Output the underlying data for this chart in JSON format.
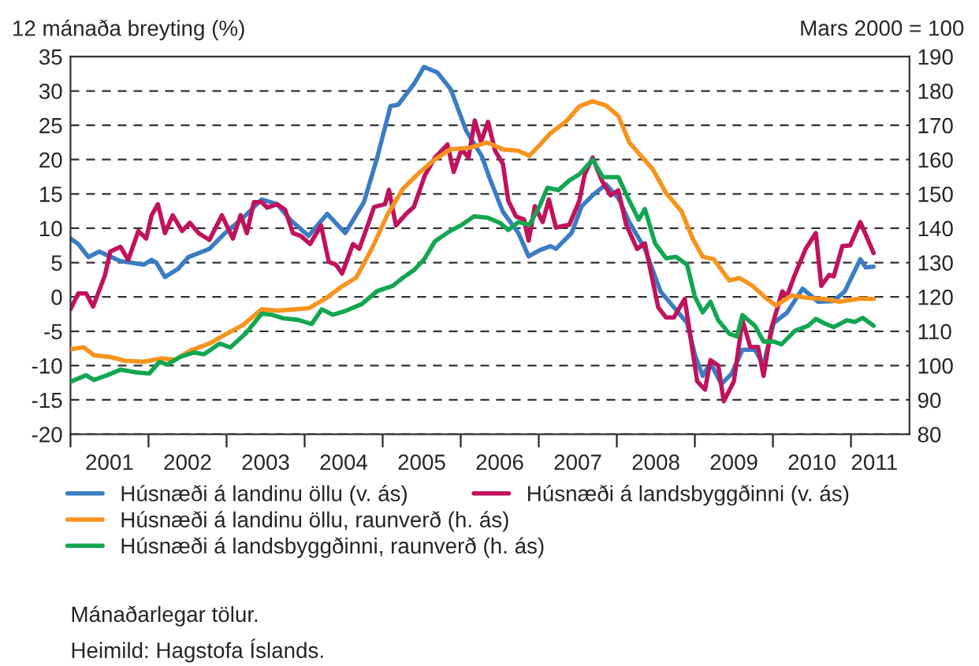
{
  "chart_data": {
    "type": "line",
    "ylabel": "12 mánaða breyting (%)",
    "y2label": "Mars 2000 = 100",
    "annotations": [
      "Mánaðarlegar tölur.",
      "Heimild: Hagstofa Íslands."
    ],
    "xlim": [
      2001,
      2011.75
    ],
    "xticks": [
      {
        "value": 2001,
        "label": null
      },
      {
        "value": 2002,
        "label": null
      },
      {
        "value": 2003,
        "label": null
      },
      {
        "value": 2004,
        "label": null
      },
      {
        "value": 2005,
        "label": null
      },
      {
        "value": 2006,
        "label": null
      },
      {
        "value": 2007,
        "label": null
      },
      {
        "value": 2008,
        "label": null
      },
      {
        "value": 2009,
        "label": null
      },
      {
        "value": 2010,
        "label": null
      },
      {
        "value": 2011,
        "label": null
      },
      {
        "value": 2001.5,
        "label": "2001"
      },
      {
        "value": 2002.5,
        "label": "2002"
      },
      {
        "value": 2003.5,
        "label": "2003"
      },
      {
        "value": 2004.5,
        "label": "2004"
      },
      {
        "value": 2005.5,
        "label": "2005"
      },
      {
        "value": 2006.5,
        "label": "2006"
      },
      {
        "value": 2007.5,
        "label": "2007"
      },
      {
        "value": 2008.5,
        "label": "2008"
      },
      {
        "value": 2009.5,
        "label": "2009"
      },
      {
        "value": 2010.5,
        "label": "2010"
      },
      {
        "value": 2011.3,
        "label": "2011"
      }
    ],
    "ylim": [
      -20,
      35
    ],
    "yticks": [
      -20,
      -15,
      -10,
      -5,
      0,
      5,
      10,
      15,
      20,
      25,
      30,
      35
    ],
    "y2lim": [
      80,
      190
    ],
    "y2ticks": [
      80,
      90,
      100,
      110,
      120,
      130,
      140,
      150,
      160,
      170,
      180,
      190
    ],
    "grid": "y",
    "legend": "bottom",
    "line_style": "solid",
    "series": [
      {
        "name": "Húsnæði á landinu öllu (v. ás)",
        "color": "#3b7dc4",
        "x": [
          2001.0,
          2001.1,
          2001.23,
          2001.37,
          2001.64,
          2001.77,
          2001.94,
          2002.04,
          2002.1,
          2002.21,
          2002.38,
          2002.51,
          2002.78,
          2002.98,
          2003.21,
          2003.45,
          2003.65,
          2003.82,
          2004.05,
          2004.29,
          2004.52,
          2004.76,
          2004.93,
          2005.1,
          2005.2,
          2005.4,
          2005.53,
          2005.7,
          2005.87,
          2006.07,
          2006.27,
          2006.37,
          2006.54,
          2006.74,
          2006.87,
          2007.01,
          2007.15,
          2007.22,
          2007.42,
          2007.55,
          2007.69,
          2007.86,
          2008.02,
          2008.16,
          2008.36,
          2008.56,
          2008.76,
          2008.9,
          2009.0,
          2009.1,
          2009.2,
          2009.34,
          2009.47,
          2009.61,
          2009.77,
          2009.88,
          2010.01,
          2010.18,
          2010.38,
          2010.58,
          2010.78,
          2010.92,
          2011.12,
          2011.19,
          2011.29
        ],
        "values": [
          8.5,
          7.7,
          5.8,
          6.6,
          5.2,
          5.0,
          4.7,
          5.4,
          5.0,
          2.9,
          4.1,
          5.8,
          7.0,
          9.3,
          11.5,
          14.2,
          13.5,
          11.2,
          8.9,
          12.1,
          9.3,
          13.8,
          20.3,
          27.8,
          28.0,
          31.0,
          33.5,
          32.7,
          30.3,
          24.2,
          20.5,
          17.3,
          12.4,
          9.3,
          5.9,
          6.8,
          7.4,
          7.0,
          9.3,
          13.2,
          14.8,
          16.4,
          14.4,
          10.9,
          7.0,
          0.8,
          -1.9,
          -3.8,
          -8.4,
          -11.5,
          -9.6,
          -12.7,
          -11.2,
          -7.7,
          -7.7,
          -9.9,
          -3.8,
          -2.3,
          1.2,
          -0.7,
          -0.6,
          0.8,
          5.5,
          4.3,
          4.4
        ]
      },
      {
        "name": "Húsnæði á landsbyggðinni (v. ás)",
        "color": "#c0135c",
        "x": [
          2001.0,
          2001.1,
          2001.2,
          2001.29,
          2001.44,
          2001.51,
          2001.64,
          2001.74,
          2001.87,
          2001.97,
          2002.04,
          2002.12,
          2002.21,
          2002.31,
          2002.43,
          2002.53,
          2002.64,
          2002.78,
          2002.94,
          2003.08,
          2003.18,
          2003.26,
          2003.35,
          2003.45,
          2003.52,
          2003.65,
          2003.75,
          2003.85,
          2003.95,
          2004.07,
          2004.21,
          2004.31,
          2004.4,
          2004.48,
          2004.62,
          2004.7,
          2004.82,
          2004.89,
          2005.03,
          2005.08,
          2005.17,
          2005.3,
          2005.4,
          2005.54,
          2005.67,
          2005.83,
          2005.91,
          2006.01,
          2006.1,
          2006.18,
          2006.26,
          2006.35,
          2006.44,
          2006.54,
          2006.61,
          2006.71,
          2006.81,
          2006.87,
          2006.95,
          2007.05,
          2007.13,
          2007.22,
          2007.39,
          2007.52,
          2007.59,
          2007.69,
          2007.81,
          2007.92,
          2008.02,
          2008.12,
          2008.26,
          2008.36,
          2008.53,
          2008.63,
          2008.73,
          2008.87,
          2009.03,
          2009.13,
          2009.2,
          2009.3,
          2009.37,
          2009.5,
          2009.61,
          2009.71,
          2009.81,
          2009.88,
          2009.98,
          2010.12,
          2010.18,
          2010.28,
          2010.42,
          2010.55,
          2010.62,
          2010.72,
          2010.78,
          2010.89,
          2010.99,
          2011.12,
          2011.29
        ],
        "values": [
          -1.8,
          0.5,
          0.5,
          -1.4,
          3.1,
          6.6,
          7.3,
          5.4,
          9.6,
          8.5,
          11.9,
          13.5,
          9.3,
          11.9,
          9.6,
          10.8,
          9.3,
          8.3,
          11.9,
          8.5,
          11.9,
          9.3,
          13.8,
          13.8,
          13.0,
          13.5,
          12.7,
          9.3,
          8.9,
          7.7,
          10.4,
          5.1,
          4.7,
          3.4,
          7.7,
          7.0,
          10.8,
          13.1,
          13.5,
          15.6,
          10.4,
          12.1,
          13.1,
          17.7,
          20.3,
          22.2,
          18.2,
          21.5,
          20.3,
          25.7,
          22.6,
          25.5,
          21.3,
          19.4,
          14.0,
          11.7,
          11.3,
          8.2,
          13.2,
          10.9,
          14.2,
          10.1,
          10.5,
          14.0,
          17.9,
          20.3,
          16.9,
          14.8,
          15.5,
          10.5,
          7.0,
          7.8,
          -1.5,
          -3.0,
          -3.0,
          -0.3,
          -12.3,
          -13.5,
          -9.2,
          -10.0,
          -15.2,
          -12.3,
          -3.4,
          -7.3,
          -7.3,
          -11.5,
          -4.6,
          0.8,
          0.1,
          3.2,
          7.0,
          9.3,
          1.6,
          3.2,
          3.0,
          7.4,
          7.5,
          10.9,
          6.4
        ]
      },
      {
        "name": "Húsnæði á landinu öllu, raunverð (h. ás)",
        "color": "#f7941e",
        "axis": "y2",
        "x": [
          2001.0,
          2001.17,
          2001.3,
          2001.51,
          2001.7,
          2001.94,
          2002.17,
          2002.34,
          2002.54,
          2002.78,
          2002.98,
          2003.21,
          2003.45,
          2003.65,
          2003.89,
          2004.05,
          2004.26,
          2004.46,
          2004.66,
          2004.86,
          2005.06,
          2005.26,
          2005.46,
          2005.66,
          2005.87,
          2006.13,
          2006.34,
          2006.54,
          2006.74,
          2006.88,
          2007.01,
          2007.15,
          2007.35,
          2007.52,
          2007.69,
          2007.86,
          2008.02,
          2008.16,
          2008.29,
          2008.46,
          2008.63,
          2008.83,
          2008.97,
          2009.1,
          2009.24,
          2009.44,
          2009.57,
          2009.74,
          2009.91,
          2010.04,
          2010.24,
          2010.45,
          2010.65,
          2010.85,
          2011.12,
          2011.29
        ],
        "values": [
          104.8,
          105.3,
          103.0,
          102.5,
          101.4,
          101.1,
          102.1,
          101.7,
          104.4,
          106.4,
          109.0,
          111.8,
          116.4,
          116.0,
          116.4,
          116.7,
          119.4,
          122.8,
          125.6,
          134.0,
          143.9,
          151.5,
          156.0,
          159.9,
          163.0,
          163.5,
          165.0,
          163.0,
          162.6,
          161.1,
          164.2,
          167.7,
          171.1,
          175.5,
          177.0,
          175.8,
          172.7,
          165.0,
          161.6,
          157.2,
          150.3,
          144.9,
          137.1,
          131.7,
          131.0,
          124.8,
          125.5,
          123.2,
          119.7,
          117.5,
          120.4,
          119.7,
          119.4,
          118.6,
          119.5,
          119.4
        ]
      },
      {
        "name": "Húsnæði á landsbyggðinni, raunverð (h. ás)",
        "color": "#13a651",
        "axis": "y2",
        "x": [
          2001.0,
          2001.2,
          2001.3,
          2001.47,
          2001.64,
          2001.84,
          2002.01,
          2002.14,
          2002.24,
          2002.41,
          2002.58,
          2002.71,
          2002.91,
          2003.05,
          2003.25,
          2003.45,
          2003.58,
          2003.72,
          2003.92,
          2004.09,
          2004.22,
          2004.36,
          2004.52,
          2004.73,
          2004.93,
          2005.13,
          2005.26,
          2005.4,
          2005.53,
          2005.67,
          2005.87,
          2006.0,
          2006.17,
          2006.34,
          2006.5,
          2006.61,
          2006.74,
          2006.88,
          2007.01,
          2007.11,
          2007.25,
          2007.39,
          2007.52,
          2007.69,
          2007.82,
          2008.02,
          2008.16,
          2008.28,
          2008.36,
          2008.49,
          2008.63,
          2008.76,
          2008.9,
          2009.0,
          2009.1,
          2009.2,
          2009.3,
          2009.44,
          2009.54,
          2009.61,
          2009.77,
          2009.88,
          2010.01,
          2010.11,
          2010.28,
          2010.45,
          2010.55,
          2010.65,
          2010.78,
          2010.95,
          2011.05,
          2011.15,
          2011.29
        ],
        "values": [
          95.3,
          97.2,
          95.8,
          97.2,
          98.8,
          98.0,
          97.7,
          101.1,
          100.3,
          102.6,
          103.8,
          103.3,
          106.4,
          105.3,
          109.5,
          115.1,
          114.8,
          113.8,
          113.3,
          112.1,
          116.4,
          114.8,
          115.9,
          117.9,
          121.7,
          123.2,
          125.6,
          127.8,
          130.9,
          136.2,
          139.3,
          140.8,
          143.5,
          143.1,
          141.6,
          139.5,
          141.8,
          141.0,
          146.4,
          151.8,
          151.1,
          153.9,
          155.7,
          160.0,
          154.9,
          154.9,
          148.0,
          142.5,
          145.6,
          135.6,
          131.3,
          131.7,
          129.4,
          120.1,
          115.5,
          118.6,
          113.2,
          109.3,
          108.5,
          114.7,
          111.6,
          107.0,
          107.0,
          106.2,
          110.1,
          111.6,
          113.6,
          112.4,
          111.2,
          113.2,
          112.7,
          113.9,
          111.6
        ]
      }
    ]
  }
}
